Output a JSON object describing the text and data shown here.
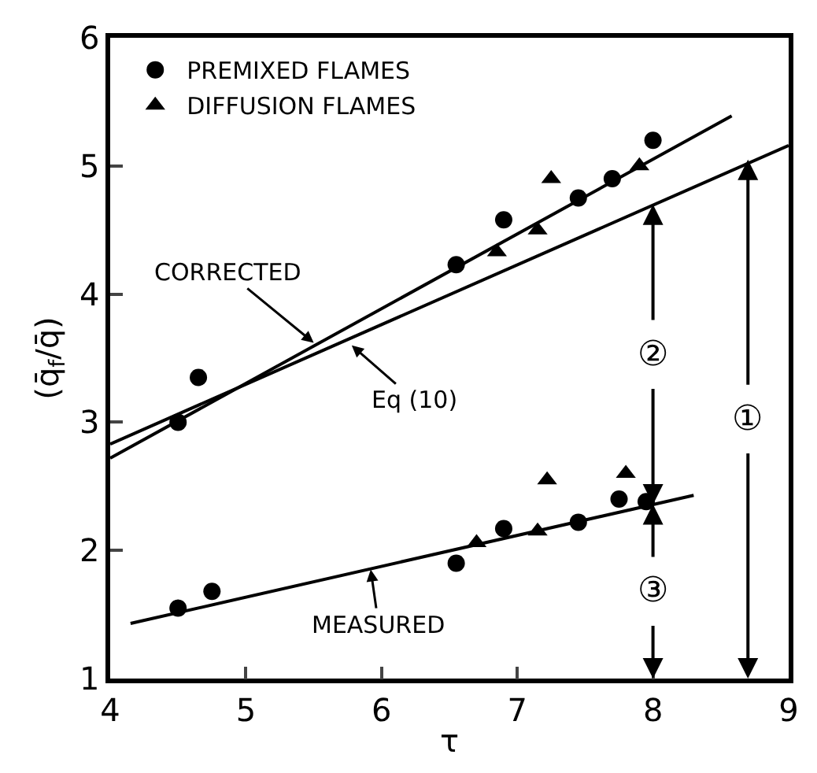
{
  "chart_data": {
    "type": "scatter",
    "xlabel": "τ",
    "ylabel": "(q̄$_{f}$/q̄)",
    "xlim": [
      4,
      9
    ],
    "ylim": [
      1,
      6
    ],
    "xticks": [
      4,
      5,
      6,
      7,
      8,
      9
    ],
    "yticks": [
      1,
      2,
      3,
      4,
      5,
      6
    ],
    "legend": "top left",
    "series": [
      {
        "name": "PREMIXED FLAMES",
        "color": "#000000",
        "marker": "circle",
        "x": [
          4.5,
          4.65,
          6.55,
          6.9,
          7.45,
          7.7,
          8.0,
          4.5,
          4.75,
          6.55,
          6.9,
          7.45,
          7.75,
          7.95
        ],
        "values": [
          3.0,
          3.35,
          4.23,
          4.58,
          4.75,
          4.9,
          5.2,
          1.55,
          1.68,
          1.9,
          2.17,
          2.22,
          2.4,
          2.38
        ]
      },
      {
        "name": "DIFFUSION FLAMES",
        "color": "#000000",
        "marker": "triangle",
        "x": [
          6.85,
          7.15,
          7.25,
          7.9,
          6.7,
          7.15,
          7.22,
          7.8
        ],
        "values": [
          4.33,
          4.5,
          4.9,
          5.0,
          2.06,
          2.15,
          2.55,
          2.6
        ]
      },
      {
        "type": "line",
        "color": "#000000",
        "marker": "none",
        "x": [
          4,
          8.58
        ],
        "values": [
          2.72,
          5.39
        ]
      },
      {
        "type": "line",
        "color": "#000000",
        "marker": "none",
        "x": [
          4,
          9
        ],
        "values": [
          2.83,
          5.16
        ]
      },
      {
        "type": "line",
        "color": "#000000",
        "marker": "none",
        "x": [
          4.15,
          8.3
        ],
        "values": [
          1.43,
          2.43
        ]
      }
    ],
    "annotations": [
      {
        "text": "CORRECTED",
        "x": 5.5,
        "y": 3.62
      },
      {
        "text": "Eq (10)",
        "x": 5.78,
        "y": 3.6
      },
      {
        "text": "MEASURED",
        "x": 5.92,
        "y": 1.85
      },
      {
        "text": "②",
        "x": 8,
        "y": 4.7
      },
      {
        "text": "③",
        "x": 8,
        "y": 2.36
      },
      {
        "text": "①",
        "x": 8.7,
        "y": 5.05
      }
    ]
  }
}
